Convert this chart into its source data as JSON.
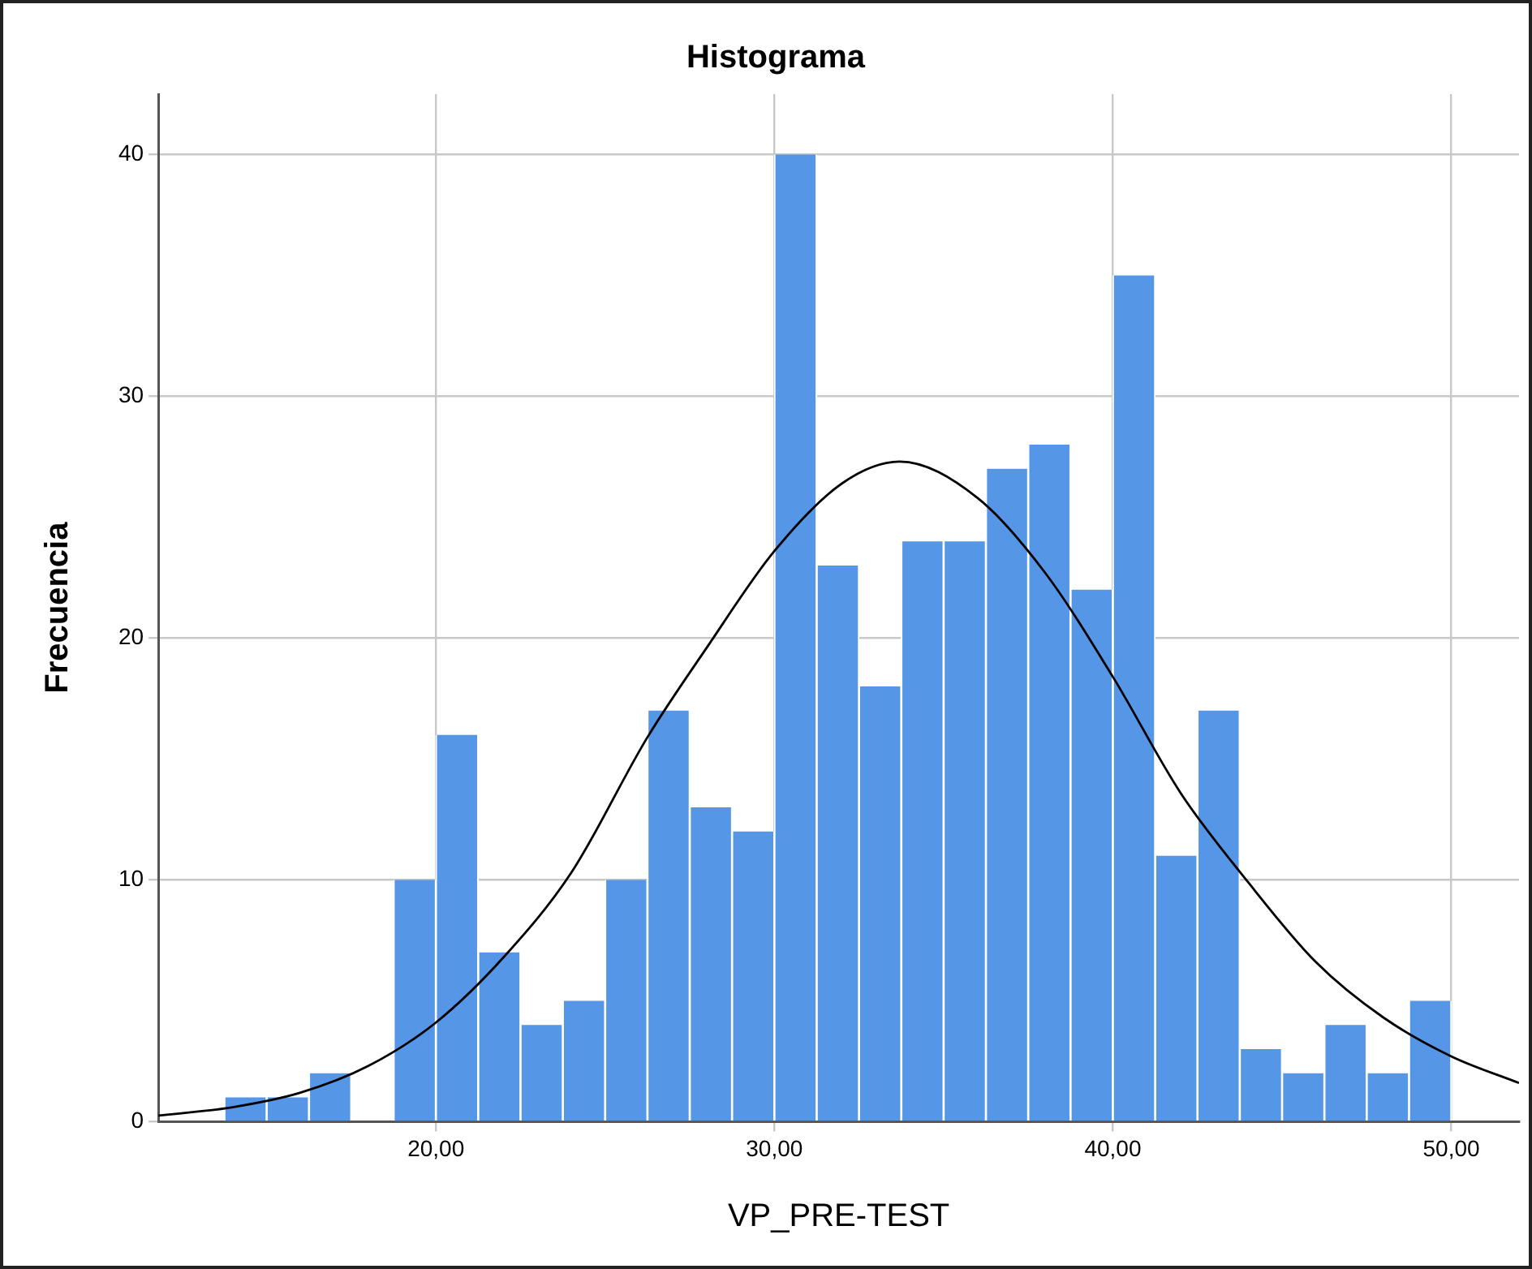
{
  "chart_data": {
    "type": "histogram",
    "title": "Histograma",
    "xlabel": "VP_PRE-TEST",
    "ylabel": "Frecuencia",
    "bins": [
      13.75,
      15,
      16.25,
      17.5,
      18.75,
      20,
      21.25,
      22.5,
      23.75,
      25,
      26.25,
      27.5,
      28.75,
      30,
      31.25,
      32.5,
      33.75,
      35,
      36.25,
      37.5,
      38.75,
      40,
      41.25,
      42.5,
      43.75,
      45,
      46.25,
      47.5,
      48.75,
      50
    ],
    "values": [
      1,
      1,
      2,
      0,
      10,
      16,
      7,
      4,
      5,
      10,
      17,
      13,
      12,
      40,
      23,
      18,
      24,
      24,
      27,
      28,
      22,
      35,
      11,
      17,
      3,
      2,
      4,
      2,
      5
    ],
    "color": "#5596e6",
    "series": [
      {
        "type": "line",
        "color": "#000000",
        "x": [
          11.8,
          14,
          16,
          18,
          20,
          22,
          24,
          26.25,
          28,
          30,
          32,
          33.7,
          36,
          38,
          40,
          42,
          44,
          46,
          48,
          50,
          52
        ],
        "values": [
          0.25,
          0.6,
          1.2,
          2.3,
          4.1,
          6.8,
          10.3,
          15.9,
          19.6,
          23.6,
          26.4,
          27.3,
          25.8,
          22.7,
          18.4,
          13.6,
          9.9,
          6.6,
          4.3,
          2.7,
          1.6
        ]
      }
    ],
    "xlim": [
      11.8,
      52
    ],
    "ylim": [
      0,
      42.5
    ],
    "xticks": [
      {
        "value": 20,
        "label": "20,00"
      },
      {
        "value": 30,
        "label": "30,00"
      },
      {
        "value": 40,
        "label": "40,00"
      },
      {
        "value": 50,
        "label": "50,00"
      }
    ],
    "yticks": [
      0,
      10,
      20,
      30,
      40
    ],
    "grid": true,
    "legend": false,
    "marker": "none",
    "line_style": "solid"
  }
}
